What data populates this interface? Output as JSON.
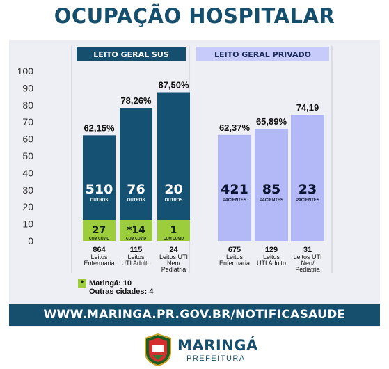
{
  "page": {
    "title": "OCUPAÇÃO HOSPITALAR",
    "url": "WWW.MARINGA.PR.GOV.BR/NOTIFICASAUDE",
    "logo_name": "MARINGÁ",
    "logo_sub": "PREFEITURA"
  },
  "legend": {
    "marker": "*",
    "line1": "Maringá: 10",
    "line2": "Outras cidades: 4"
  },
  "colors": {
    "sus_bar": "#145172",
    "covid_bar": "#9ccd3c",
    "private_bar": "#b3b8f6",
    "header_sus": "#154f6d",
    "header_private": "#c7cbf9",
    "title": "#154f6d"
  },
  "chart_data": {
    "type": "bar",
    "ylim": [
      0,
      100
    ],
    "yticks": [
      0,
      10,
      20,
      30,
      40,
      50,
      60,
      70,
      80,
      90,
      100
    ],
    "groups": [
      {
        "header": "LEITO GERAL SUS",
        "bars": [
          {
            "percent_label": "62,15%",
            "value": 62.15,
            "inner_value": "510",
            "inner_label": "OUTROS",
            "covid_value": "27",
            "covid_label": "COM COVID",
            "beds": "864",
            "cat_line1": "Leitos",
            "cat_line2": "Enfermaria"
          },
          {
            "percent_label": "78,26%",
            "value": 78.26,
            "inner_value": "76",
            "inner_label": "OUTROS",
            "covid_value": "*14",
            "covid_label": "COM COVID",
            "beds": "115",
            "cat_line1": "Leitos",
            "cat_line2": "UTI Adulto"
          },
          {
            "percent_label": "87,50%",
            "value": 87.5,
            "inner_value": "20",
            "inner_label": "OUTROS",
            "covid_value": "1",
            "covid_label": "COM COVID",
            "beds": "24",
            "cat_line1": "Leitos UTI",
            "cat_line2": "Neo/",
            "cat_line3": "Pediatria"
          }
        ]
      },
      {
        "header": "LEITO GERAL PRIVADO",
        "bars": [
          {
            "percent_label": "62,37%",
            "value": 62.37,
            "inner_value": "421",
            "inner_label": "PACIENTES",
            "beds": "675",
            "cat_line1": "Leitos",
            "cat_line2": "Enfermaria"
          },
          {
            "percent_label": "65,89%",
            "value": 65.89,
            "inner_value": "85",
            "inner_label": "PACIENTES",
            "beds": "129",
            "cat_line1": "Leitos",
            "cat_line2": "UTI Adulto"
          },
          {
            "percent_label": "74,19",
            "value": 74.19,
            "inner_value": "23",
            "inner_label": "PACIENTES",
            "beds": "31",
            "cat_line1": "Leitos UTI",
            "cat_line2": "Neo/",
            "cat_line3": "Pediatria"
          }
        ]
      }
    ]
  }
}
